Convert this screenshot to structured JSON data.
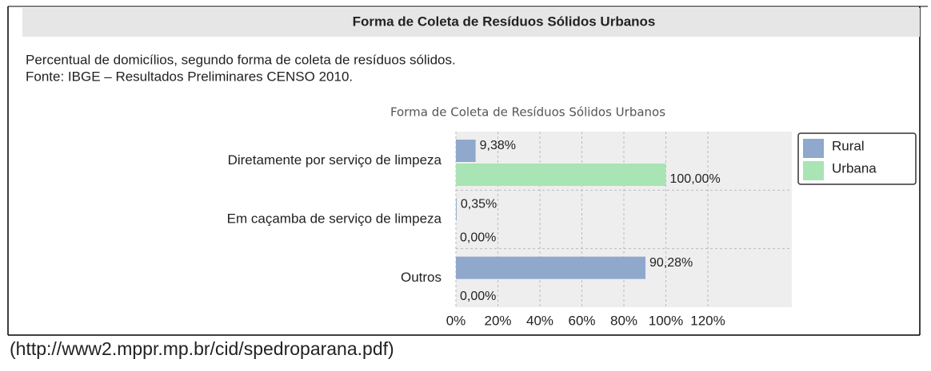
{
  "header": {
    "title": "Forma de Coleta de Resíduos Sólidos Urbanos"
  },
  "description": [
    "Percentual de domicílios, segundo forma de coleta de resíduos sólidos.",
    "Fonte: IBGE – Resultados Preliminares CENSO 2010."
  ],
  "chart_data": {
    "type": "barh",
    "title": "Forma de Coleta de Resíduos Sólidos Urbanos",
    "categories": [
      "Diretamente por serviço de limpeza",
      "Em caçamba de serviço de limpeza",
      "Outros"
    ],
    "series": [
      {
        "name": "Rural",
        "color": "#8fa8cc",
        "values": [
          9.38,
          0.35,
          90.28
        ],
        "value_labels": [
          "9,38%",
          "0,35%",
          "90,28%"
        ]
      },
      {
        "name": "Urbana",
        "color": "#a8e4b4",
        "values": [
          100,
          0,
          0
        ],
        "value_labels": [
          "100,00%",
          "0,00%",
          "0,00%"
        ]
      }
    ],
    "xlim": [
      0,
      160
    ],
    "xticks": [
      {
        "value": 0,
        "label": "0%"
      },
      {
        "value": 20,
        "label": "20%"
      },
      {
        "value": 40,
        "label": "40%"
      },
      {
        "value": 60,
        "label": "60%"
      },
      {
        "value": 80,
        "label": "80%"
      },
      {
        "value": 100,
        "label": "100%"
      },
      {
        "value": 120,
        "label": "120%"
      }
    ],
    "grid": true,
    "legend": "right"
  },
  "source": "(http://www2.mppr.mp.br/cid/spedroparana.pdf)"
}
